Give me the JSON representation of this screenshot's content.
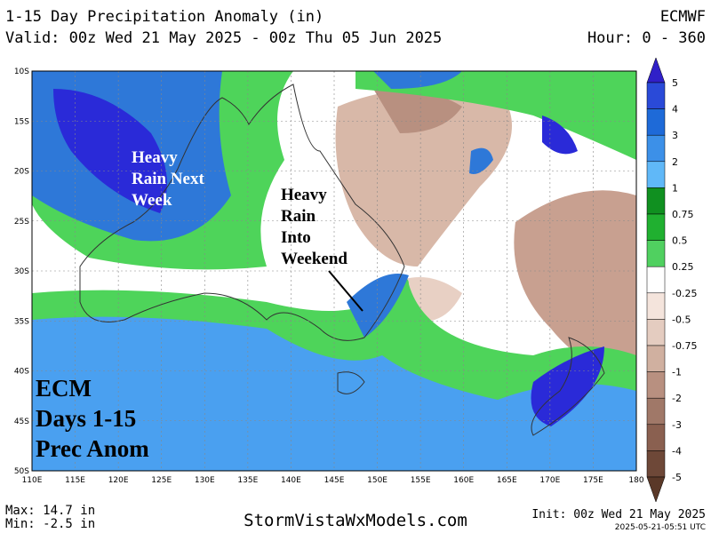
{
  "header": {
    "title": "1-15 Day Precipitation Anomaly (in)",
    "valid": "Valid: 00z Wed 21 May 2025 - 00z Thu 05 Jun 2025",
    "model": "ECMWF",
    "hour": "Hour: 0 - 360"
  },
  "map": {
    "lat_labels": [
      "10S",
      "15S",
      "20S",
      "25S",
      "30S",
      "35S",
      "40S",
      "45S",
      "50S"
    ],
    "lon_labels": [
      "110E",
      "115E",
      "120E",
      "125E",
      "130E",
      "135E",
      "140E",
      "145E",
      "150E",
      "155E",
      "160E",
      "165E",
      "170E",
      "175E",
      "180"
    ],
    "annotations": [
      {
        "lines": [
          "Heavy",
          "Rain Next",
          "Week"
        ]
      },
      {
        "lines": [
          "Heavy",
          "Rain",
          "Into",
          "Weekend"
        ]
      }
    ],
    "overlay": {
      "lines": [
        "ECM",
        "Days 1-15",
        "Prec Anom"
      ]
    }
  },
  "colorbar": {
    "labels": [
      "5",
      "4",
      "3",
      "2",
      "1",
      "0.75",
      "0.5",
      "0.25",
      "-0.25",
      "-0.5",
      "-0.75",
      "-1",
      "-2",
      "-3",
      "-4",
      "-5"
    ]
  },
  "footer": {
    "max": "Max: 14.7 in",
    "min": "Min: -2.5 in",
    "site": "StormVistaWxModels.com",
    "init": "Init: 00z Wed 21 May 2025",
    "timestamp": "2025-05-21-05:51 UTC"
  }
}
